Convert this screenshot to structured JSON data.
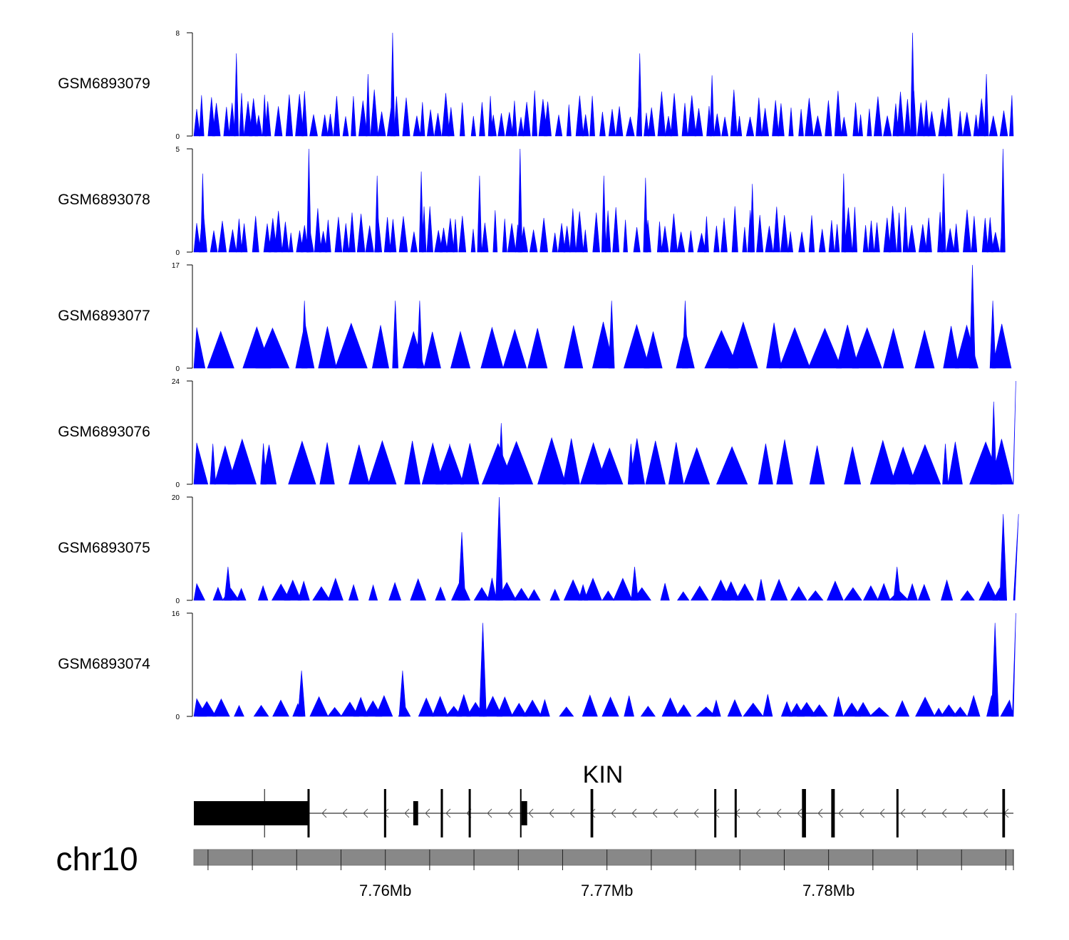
{
  "chart_data": {
    "type": "area",
    "title": "",
    "chromosome": "chr10",
    "gene": {
      "name": "KIN",
      "strand": "-",
      "exons_mb": [
        [
          7.75136,
          7.75652
        ],
        [
          7.75994,
          7.76004
        ],
        [
          7.76126,
          7.76148
        ],
        [
          7.7625,
          7.7626
        ],
        [
          7.76376,
          7.76384
        ],
        [
          7.76608,
          7.7664
        ],
        [
          7.76926,
          7.76938
        ],
        [
          7.77484,
          7.7749
        ],
        [
          7.77576,
          7.77582
        ],
        [
          7.7788,
          7.77898
        ],
        [
          7.78012,
          7.78028
        ],
        [
          7.78306,
          7.78314
        ],
        [
          7.78784,
          7.78796
        ]
      ]
    },
    "x_axis": {
      "unit": "Mb",
      "range_mb": [
        7.75136,
        7.78834
      ],
      "tick_labels": [
        "7.76Mb",
        "7.77Mb",
        "7.78Mb"
      ],
      "tick_values_mb": [
        7.76,
        7.77,
        7.78
      ],
      "minor_tick_step_mb": 0.002
    },
    "tracks": [
      {
        "name": "GSM6893079",
        "ymax": 8,
        "tick_top": "8",
        "tick_bottom": "0",
        "profile": "sparse",
        "peaks": [
          [
            7.75328,
            6.4
          ],
          [
            7.75455,
            3.2
          ],
          [
            7.75922,
            4.8
          ],
          [
            7.76033,
            8.0
          ],
          [
            7.76474,
            3.1
          ],
          [
            7.77148,
            6.4
          ],
          [
            7.77474,
            4.7
          ],
          [
            7.78379,
            8.0
          ],
          [
            7.78712,
            4.8
          ]
        ]
      },
      {
        "name": "GSM6893078",
        "ymax": 5,
        "tick_top": "5",
        "tick_bottom": "0",
        "profile": "sparse",
        "peaks": [
          [
            7.75176,
            3.8
          ],
          [
            7.75655,
            5.0
          ],
          [
            7.75963,
            3.7
          ],
          [
            7.76162,
            3.9
          ],
          [
            7.76425,
            3.7
          ],
          [
            7.76608,
            5.0
          ],
          [
            7.76986,
            3.7
          ],
          [
            7.77174,
            3.6
          ],
          [
            7.77656,
            3.3
          ],
          [
            7.78068,
            3.8
          ],
          [
            7.78519,
            3.8
          ],
          [
            7.78787,
            5.0
          ]
        ]
      },
      {
        "name": "GSM6893077",
        "ymax": 17,
        "tick_top": "17",
        "tick_bottom": "0",
        "profile": "triangles",
        "peaks": [
          [
            7.75635,
            11.1
          ],
          [
            7.76045,
            11.1
          ],
          [
            7.76155,
            11.1
          ],
          [
            7.77021,
            11.1
          ],
          [
            7.77353,
            11.1
          ],
          [
            7.78649,
            17.0
          ],
          [
            7.78741,
            11.1
          ]
        ]
      },
      {
        "name": "GSM6893076",
        "ymax": 24,
        "tick_top": "24",
        "tick_bottom": "0",
        "profile": "triangles",
        "peaks": [
          [
            7.75222,
            9.4
          ],
          [
            7.7545,
            9.5
          ],
          [
            7.7629,
            9.4
          ],
          [
            7.76523,
            14.2
          ],
          [
            7.77108,
            9.4
          ],
          [
            7.78527,
            9.4
          ],
          [
            7.78745,
            19.2
          ],
          [
            7.78845,
            24.0
          ]
        ]
      },
      {
        "name": "GSM6893075",
        "ymax": 20,
        "tick_top": "20",
        "tick_bottom": "0",
        "profile": "dense",
        "peaks": [
          [
            7.7529,
            6.5
          ],
          [
            7.76345,
            13.2
          ],
          [
            7.76514,
            20.0
          ],
          [
            7.77125,
            6.5
          ],
          [
            7.78309,
            6.5
          ],
          [
            7.78788,
            16.7
          ],
          [
            7.78857,
            16.7
          ]
        ]
      },
      {
        "name": "GSM6893074",
        "ymax": 16,
        "tick_top": "16",
        "tick_bottom": "0",
        "profile": "dense",
        "peaks": [
          [
            7.75622,
            7.1
          ],
          [
            7.76078,
            7.1
          ],
          [
            7.7644,
            14.5
          ],
          [
            7.78751,
            14.5
          ],
          [
            7.78845,
            16.0
          ]
        ]
      }
    ]
  }
}
